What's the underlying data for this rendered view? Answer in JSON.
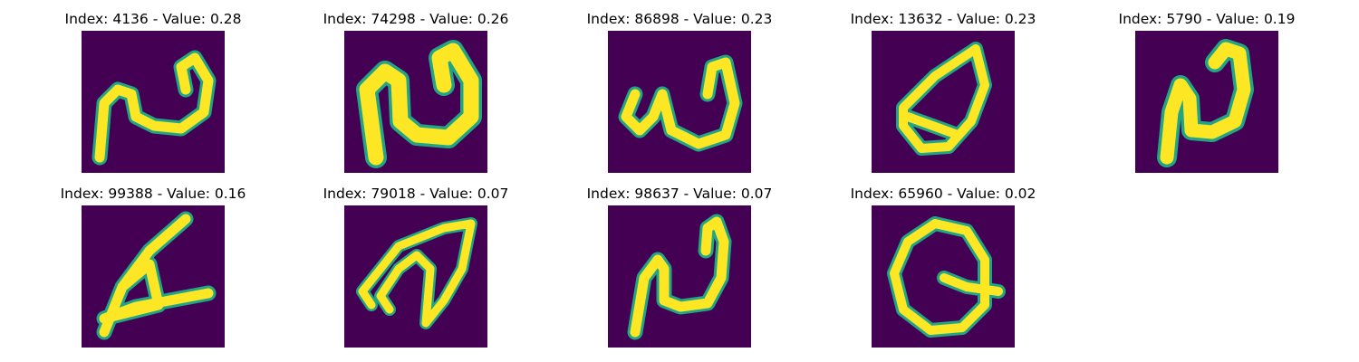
{
  "colors": {
    "background": "#440154",
    "stroke_core": "#fde725",
    "stroke_edge": "#21a585",
    "page": "#ffffff"
  },
  "panels": [
    {
      "title": "Index: 4136 - Value: 0.28",
      "glyph": "n-loop"
    },
    {
      "title": "Index: 74298 - Value: 0.26",
      "glyph": "n-loop-bold"
    },
    {
      "title": "Index: 86898 - Value: 0.23",
      "glyph": "w-shape"
    },
    {
      "title": "Index: 13632 - Value: 0.23",
      "glyph": "leaf-loop"
    },
    {
      "title": "Index: 5790 - Value: 0.19",
      "glyph": "n-narrow"
    },
    {
      "title": "Index: 99388 - Value: 0.16",
      "glyph": "a-triangle"
    },
    {
      "title": "Index: 79018 - Value: 0.07",
      "glyph": "leaf-slash"
    },
    {
      "title": "Index: 98637 - Value: 0.07",
      "glyph": "n-tall"
    },
    {
      "title": "Index: 65960 - Value: 0.02",
      "glyph": "q-loop"
    }
  ]
}
